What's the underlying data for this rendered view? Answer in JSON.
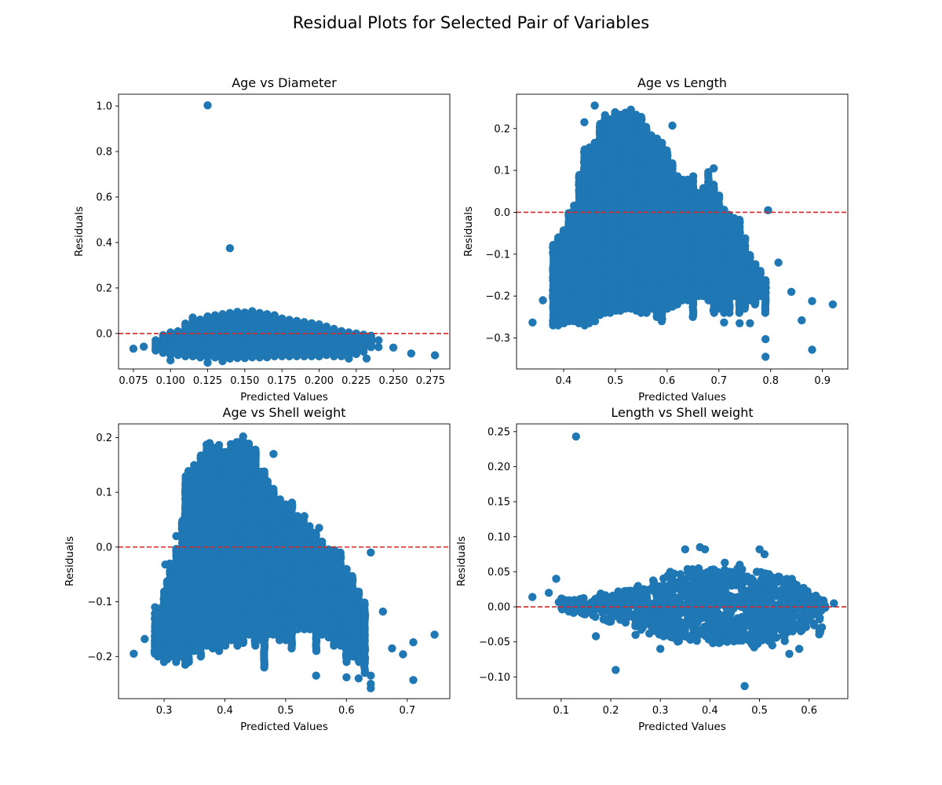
{
  "figure": {
    "title": "Residual Plots for Selected Pair of Variables"
  },
  "chart_data": [
    {
      "type": "scatter",
      "title": "Age vs Diameter",
      "xlabel": "Predicted Values",
      "ylabel": "Residuals",
      "xlim": [
        0.065,
        0.288
      ],
      "ylim": [
        -0.156,
        1.052
      ],
      "xticks": [
        0.075,
        0.1,
        0.125,
        0.15,
        0.175,
        0.2,
        0.225,
        0.25,
        0.275
      ],
      "xtick_labels": [
        "0.075",
        "0.100",
        "0.125",
        "0.150",
        "0.175",
        "0.200",
        "0.225",
        "0.250",
        "0.275"
      ],
      "yticks": [
        0.0,
        0.2,
        0.4,
        0.6,
        0.8,
        1.0
      ],
      "ytick_labels": [
        "0.0",
        "0.2",
        "0.4",
        "0.6",
        "0.8",
        "1.0"
      ],
      "reference_line": 0.0,
      "marker_color": "#1f77b4",
      "reference_color": "#d62728",
      "points": [
        [
          0.075,
          -0.067
        ],
        [
          0.082,
          -0.058
        ],
        [
          0.1,
          -0.118
        ],
        [
          0.125,
          1.003
        ],
        [
          0.14,
          0.375
        ],
        [
          0.125,
          -0.128
        ],
        [
          0.135,
          -0.122
        ],
        [
          0.278,
          -0.096
        ],
        [
          0.262,
          -0.088
        ],
        [
          0.25,
          -0.062
        ],
        [
          0.24,
          -0.03
        ],
        [
          0.232,
          -0.11
        ],
        [
          0.115,
          0.07
        ],
        [
          0.145,
          0.095
        ],
        [
          0.155,
          0.098
        ],
        [
          0.09,
          -0.03
        ],
        [
          0.09,
          -0.07
        ],
        [
          0.095,
          -0.01
        ],
        [
          0.095,
          -0.08
        ],
        [
          0.1,
          0.0
        ],
        [
          0.1,
          -0.09
        ],
        [
          0.105,
          0.01
        ],
        [
          0.105,
          -0.09
        ],
        [
          0.11,
          0.04
        ],
        [
          0.11,
          -0.1
        ],
        [
          0.115,
          -0.1
        ],
        [
          0.12,
          0.06
        ],
        [
          0.12,
          -0.105
        ],
        [
          0.125,
          0.075
        ],
        [
          0.13,
          0.08
        ],
        [
          0.13,
          -0.105
        ],
        [
          0.135,
          0.085
        ],
        [
          0.14,
          0.09
        ],
        [
          0.14,
          -0.11
        ],
        [
          0.15,
          0.092
        ],
        [
          0.15,
          -0.108
        ],
        [
          0.16,
          0.09
        ],
        [
          0.16,
          -0.105
        ],
        [
          0.165,
          0.085
        ],
        [
          0.17,
          0.08
        ],
        [
          0.17,
          -0.1
        ],
        [
          0.175,
          0.065
        ],
        [
          0.18,
          0.06
        ],
        [
          0.18,
          -0.1
        ],
        [
          0.185,
          0.055
        ],
        [
          0.19,
          0.05
        ],
        [
          0.19,
          -0.1
        ],
        [
          0.195,
          0.045
        ],
        [
          0.2,
          0.04
        ],
        [
          0.2,
          -0.1
        ],
        [
          0.205,
          0.03
        ],
        [
          0.21,
          0.02
        ],
        [
          0.21,
          -0.1
        ],
        [
          0.215,
          0.01
        ],
        [
          0.22,
          0.005
        ],
        [
          0.22,
          -0.11
        ],
        [
          0.225,
          0.0
        ],
        [
          0.23,
          -0.005
        ],
        [
          0.235,
          -0.01
        ],
        [
          0.24,
          -0.06
        ]
      ]
    },
    {
      "type": "scatter",
      "title": "Age vs Length",
      "xlabel": "Predicted Values",
      "ylabel": "Residuals",
      "xlim": [
        0.309,
        0.949
      ],
      "ylim": [
        -0.374,
        0.282
      ],
      "xticks": [
        0.4,
        0.5,
        0.6,
        0.7,
        0.8,
        0.9
      ],
      "xtick_labels": [
        "0.4",
        "0.5",
        "0.6",
        "0.7",
        "0.8",
        "0.9"
      ],
      "yticks": [
        -0.3,
        -0.2,
        -0.1,
        0.0,
        0.1,
        0.2
      ],
      "ytick_labels": [
        "−0.3",
        "−0.2",
        "−0.1",
        "0.0",
        "0.1",
        "0.2"
      ],
      "reference_line": 0.0,
      "marker_color": "#1f77b4",
      "reference_color": "#d62728",
      "points": [
        [
          0.34,
          -0.263
        ],
        [
          0.36,
          -0.21
        ],
        [
          0.38,
          -0.14
        ],
        [
          0.44,
          0.215
        ],
        [
          0.46,
          0.255
        ],
        [
          0.48,
          0.232
        ],
        [
          0.53,
          0.245
        ],
        [
          0.61,
          0.207
        ],
        [
          0.69,
          0.105
        ],
        [
          0.795,
          0.005
        ],
        [
          0.815,
          -0.12
        ],
        [
          0.84,
          -0.19
        ],
        [
          0.86,
          -0.258
        ],
        [
          0.88,
          -0.212
        ],
        [
          0.88,
          -0.328
        ],
        [
          0.92,
          -0.22
        ],
        [
          0.79,
          -0.345
        ],
        [
          0.79,
          -0.303
        ],
        [
          0.76,
          -0.265
        ],
        [
          0.74,
          -0.265
        ],
        [
          0.71,
          -0.263
        ]
      ],
      "vertical_bands": [
        [
          0.38,
          -0.27,
          -0.075
        ],
        [
          0.39,
          -0.27,
          -0.055
        ],
        [
          0.4,
          -0.265,
          -0.04
        ],
        [
          0.41,
          -0.26,
          0.0
        ],
        [
          0.42,
          -0.26,
          0.02
        ],
        [
          0.43,
          -0.265,
          0.09
        ],
        [
          0.44,
          -0.27,
          0.15
        ],
        [
          0.45,
          -0.265,
          0.155
        ],
        [
          0.46,
          -0.26,
          0.17
        ],
        [
          0.47,
          -0.245,
          0.215
        ],
        [
          0.48,
          -0.24,
          0.23
        ],
        [
          0.49,
          -0.24,
          0.225
        ],
        [
          0.5,
          -0.235,
          0.24
        ],
        [
          0.51,
          -0.235,
          0.235
        ],
        [
          0.52,
          -0.23,
          0.24
        ],
        [
          0.53,
          -0.23,
          0.242
        ],
        [
          0.54,
          -0.235,
          0.235
        ],
        [
          0.55,
          -0.24,
          0.23
        ],
        [
          0.56,
          -0.24,
          0.205
        ],
        [
          0.57,
          -0.23,
          0.185
        ],
        [
          0.58,
          -0.25,
          0.18
        ],
        [
          0.59,
          -0.26,
          0.17
        ],
        [
          0.6,
          -0.23,
          0.15
        ],
        [
          0.61,
          -0.225,
          0.12
        ],
        [
          0.62,
          -0.22,
          0.09
        ],
        [
          0.63,
          -0.21,
          0.08
        ],
        [
          0.64,
          -0.21,
          0.08
        ],
        [
          0.65,
          -0.25,
          0.09
        ],
        [
          0.66,
          -0.2,
          0.05
        ],
        [
          0.67,
          -0.2,
          0.06
        ],
        [
          0.68,
          -0.21,
          0.1
        ],
        [
          0.69,
          -0.24,
          0.07
        ],
        [
          0.7,
          -0.23,
          0.04
        ],
        [
          0.71,
          -0.24,
          0.01
        ],
        [
          0.72,
          -0.24,
          -0.005
        ],
        [
          0.73,
          -0.2,
          -0.01
        ],
        [
          0.74,
          -0.24,
          -0.015
        ],
        [
          0.75,
          -0.23,
          -0.06
        ],
        [
          0.76,
          -0.21,
          -0.1
        ],
        [
          0.77,
          -0.22,
          -0.12
        ],
        [
          0.78,
          -0.2,
          -0.14
        ],
        [
          0.79,
          -0.24,
          -0.16
        ]
      ]
    },
    {
      "type": "scatter",
      "title": "Age vs Shell weight",
      "xlabel": "Predicted Values",
      "ylabel": "Residuals",
      "xlim": [
        0.225,
        0.77
      ],
      "ylim": [
        -0.277,
        0.225
      ],
      "xticks": [
        0.3,
        0.4,
        0.5,
        0.6,
        0.7
      ],
      "xtick_labels": [
        "0.3",
        "0.4",
        "0.5",
        "0.6",
        "0.7"
      ],
      "yticks": [
        -0.2,
        -0.1,
        0.0,
        0.1,
        0.2
      ],
      "ytick_labels": [
        "−0.2",
        "−0.1",
        "0.0",
        "0.1",
        "0.2"
      ],
      "reference_line": 0.0,
      "marker_color": "#1f77b4",
      "reference_color": "#d62728",
      "points": [
        [
          0.25,
          -0.195
        ],
        [
          0.268,
          -0.168
        ],
        [
          0.285,
          -0.11
        ],
        [
          0.302,
          -0.032
        ],
        [
          0.32,
          0.02
        ],
        [
          0.375,
          0.19
        ],
        [
          0.43,
          0.202
        ],
        [
          0.48,
          0.17
        ],
        [
          0.555,
          0.035
        ],
        [
          0.64,
          -0.01
        ],
        [
          0.66,
          -0.118
        ],
        [
          0.675,
          -0.185
        ],
        [
          0.693,
          -0.196
        ],
        [
          0.71,
          -0.174
        ],
        [
          0.71,
          -0.243
        ],
        [
          0.745,
          -0.16
        ],
        [
          0.64,
          -0.258
        ],
        [
          0.64,
          -0.25
        ],
        [
          0.64,
          -0.235
        ],
        [
          0.62,
          -0.24
        ],
        [
          0.6,
          -0.238
        ],
        [
          0.55,
          -0.235
        ]
      ],
      "vertical_bands": [
        [
          0.285,
          -0.195,
          -0.12
        ],
        [
          0.29,
          -0.2,
          -0.11
        ],
        [
          0.3,
          -0.21,
          -0.08
        ],
        [
          0.305,
          -0.205,
          -0.06
        ],
        [
          0.31,
          -0.2,
          -0.03
        ],
        [
          0.32,
          -0.21,
          0.0
        ],
        [
          0.33,
          -0.2,
          0.05
        ],
        [
          0.335,
          -0.215,
          0.13
        ],
        [
          0.34,
          -0.21,
          0.14
        ],
        [
          0.35,
          -0.19,
          0.15
        ],
        [
          0.36,
          -0.2,
          0.17
        ],
        [
          0.37,
          -0.18,
          0.19
        ],
        [
          0.38,
          -0.185,
          0.185
        ],
        [
          0.39,
          -0.19,
          0.19
        ],
        [
          0.4,
          -0.18,
          0.175
        ],
        [
          0.41,
          -0.17,
          0.19
        ],
        [
          0.42,
          -0.18,
          0.195
        ],
        [
          0.43,
          -0.175,
          0.2
        ],
        [
          0.44,
          -0.16,
          0.19
        ],
        [
          0.45,
          -0.18,
          0.18
        ],
        [
          0.46,
          -0.17,
          0.14
        ],
        [
          0.465,
          -0.22,
          0.14
        ],
        [
          0.47,
          -0.16,
          0.12
        ],
        [
          0.48,
          -0.16,
          0.11
        ],
        [
          0.49,
          -0.17,
          0.09
        ],
        [
          0.5,
          -0.17,
          0.08
        ],
        [
          0.51,
          -0.185,
          0.085
        ],
        [
          0.52,
          -0.15,
          0.06
        ],
        [
          0.53,
          -0.15,
          0.06
        ],
        [
          0.54,
          -0.15,
          0.04
        ],
        [
          0.55,
          -0.19,
          0.03
        ],
        [
          0.56,
          -0.16,
          0.01
        ],
        [
          0.57,
          -0.165,
          0.0
        ],
        [
          0.58,
          -0.18,
          -0.005
        ],
        [
          0.59,
          -0.18,
          -0.01
        ],
        [
          0.6,
          -0.21,
          -0.04
        ],
        [
          0.61,
          -0.2,
          -0.05
        ],
        [
          0.62,
          -0.21,
          -0.08
        ],
        [
          0.63,
          -0.23,
          -0.1
        ]
      ]
    },
    {
      "type": "scatter",
      "title": "Length vs Shell weight",
      "xlabel": "Predicted Values",
      "ylabel": "Residuals",
      "xlim": [
        0.01,
        0.678
      ],
      "ylim": [
        -0.131,
        0.261
      ],
      "xticks": [
        0.1,
        0.2,
        0.3,
        0.4,
        0.5,
        0.6
      ],
      "xtick_labels": [
        "0.1",
        "0.2",
        "0.3",
        "0.4",
        "0.5",
        "0.6"
      ],
      "yticks": [
        -0.1,
        -0.05,
        0.0,
        0.05,
        0.1,
        0.15,
        0.2,
        0.25
      ],
      "ytick_labels": [
        "−0.10",
        "−0.05",
        "0.00",
        "0.05",
        "0.10",
        "0.15",
        "0.20",
        "0.25"
      ],
      "reference_line": 0.0,
      "marker_color": "#1f77b4",
      "reference_color": "#d62728",
      "points": [
        [
          0.042,
          0.014
        ],
        [
          0.075,
          0.02
        ],
        [
          0.09,
          0.04
        ],
        [
          0.13,
          0.243
        ],
        [
          0.21,
          -0.09
        ],
        [
          0.47,
          -0.113
        ],
        [
          0.65,
          0.005
        ],
        [
          0.35,
          0.082
        ],
        [
          0.38,
          0.085
        ],
        [
          0.39,
          0.082
        ],
        [
          0.5,
          0.082
        ],
        [
          0.51,
          0.075
        ],
        [
          0.58,
          -0.06
        ],
        [
          0.56,
          -0.067
        ],
        [
          0.32,
          0.05
        ],
        [
          0.3,
          -0.06
        ],
        [
          0.25,
          -0.04
        ],
        [
          0.17,
          -0.042
        ],
        [
          0.43,
          0.063
        ],
        [
          0.46,
          0.06
        ]
      ],
      "blob": [
        [
          0.1,
          -0.01,
          0.012
        ],
        [
          0.11,
          -0.015,
          0.01
        ],
        [
          0.12,
          -0.012,
          0.01
        ],
        [
          0.13,
          -0.01,
          0.012
        ],
        [
          0.14,
          -0.015,
          0.012
        ],
        [
          0.15,
          -0.012,
          0.014
        ],
        [
          0.16,
          -0.012,
          0.012
        ],
        [
          0.17,
          -0.015,
          0.015
        ],
        [
          0.18,
          -0.015,
          0.02
        ],
        [
          0.19,
          -0.02,
          0.02
        ],
        [
          0.2,
          -0.025,
          0.018
        ],
        [
          0.21,
          -0.02,
          0.025
        ],
        [
          0.22,
          -0.02,
          0.02
        ],
        [
          0.23,
          -0.025,
          0.025
        ],
        [
          0.24,
          -0.025,
          0.025
        ],
        [
          0.25,
          -0.03,
          0.03
        ],
        [
          0.26,
          -0.035,
          0.03
        ],
        [
          0.27,
          -0.03,
          0.035
        ],
        [
          0.28,
          -0.04,
          0.03
        ],
        [
          0.29,
          -0.035,
          0.04
        ],
        [
          0.3,
          -0.04,
          0.04
        ],
        [
          0.31,
          -0.045,
          0.045
        ],
        [
          0.32,
          -0.045,
          0.045
        ],
        [
          0.33,
          -0.045,
          0.05
        ],
        [
          0.34,
          -0.05,
          0.05
        ],
        [
          0.35,
          -0.045,
          0.055
        ],
        [
          0.36,
          -0.05,
          0.055
        ],
        [
          0.37,
          -0.05,
          0.05
        ],
        [
          0.38,
          -0.045,
          0.055
        ],
        [
          0.39,
          -0.05,
          0.055
        ],
        [
          0.4,
          -0.055,
          0.055
        ],
        [
          0.41,
          -0.05,
          0.055
        ],
        [
          0.42,
          -0.055,
          0.05
        ],
        [
          0.43,
          -0.05,
          0.055
        ],
        [
          0.44,
          -0.05,
          0.05
        ],
        [
          0.45,
          -0.055,
          0.05
        ],
        [
          0.46,
          -0.055,
          0.055
        ],
        [
          0.47,
          -0.05,
          0.05
        ],
        [
          0.48,
          -0.055,
          0.05
        ],
        [
          0.49,
          -0.06,
          0.05
        ],
        [
          0.5,
          -0.055,
          0.055
        ],
        [
          0.51,
          -0.05,
          0.05
        ],
        [
          0.52,
          -0.055,
          0.05
        ],
        [
          0.53,
          -0.045,
          0.045
        ],
        [
          0.54,
          -0.045,
          0.045
        ],
        [
          0.55,
          -0.05,
          0.04
        ],
        [
          0.56,
          -0.045,
          0.04
        ],
        [
          0.57,
          -0.04,
          0.035
        ],
        [
          0.58,
          -0.035,
          0.03
        ],
        [
          0.59,
          -0.035,
          0.03
        ],
        [
          0.6,
          -0.03,
          0.025
        ],
        [
          0.61,
          -0.03,
          0.02
        ],
        [
          0.62,
          -0.04,
          0.015
        ],
        [
          0.63,
          -0.01,
          0.01
        ]
      ]
    }
  ]
}
